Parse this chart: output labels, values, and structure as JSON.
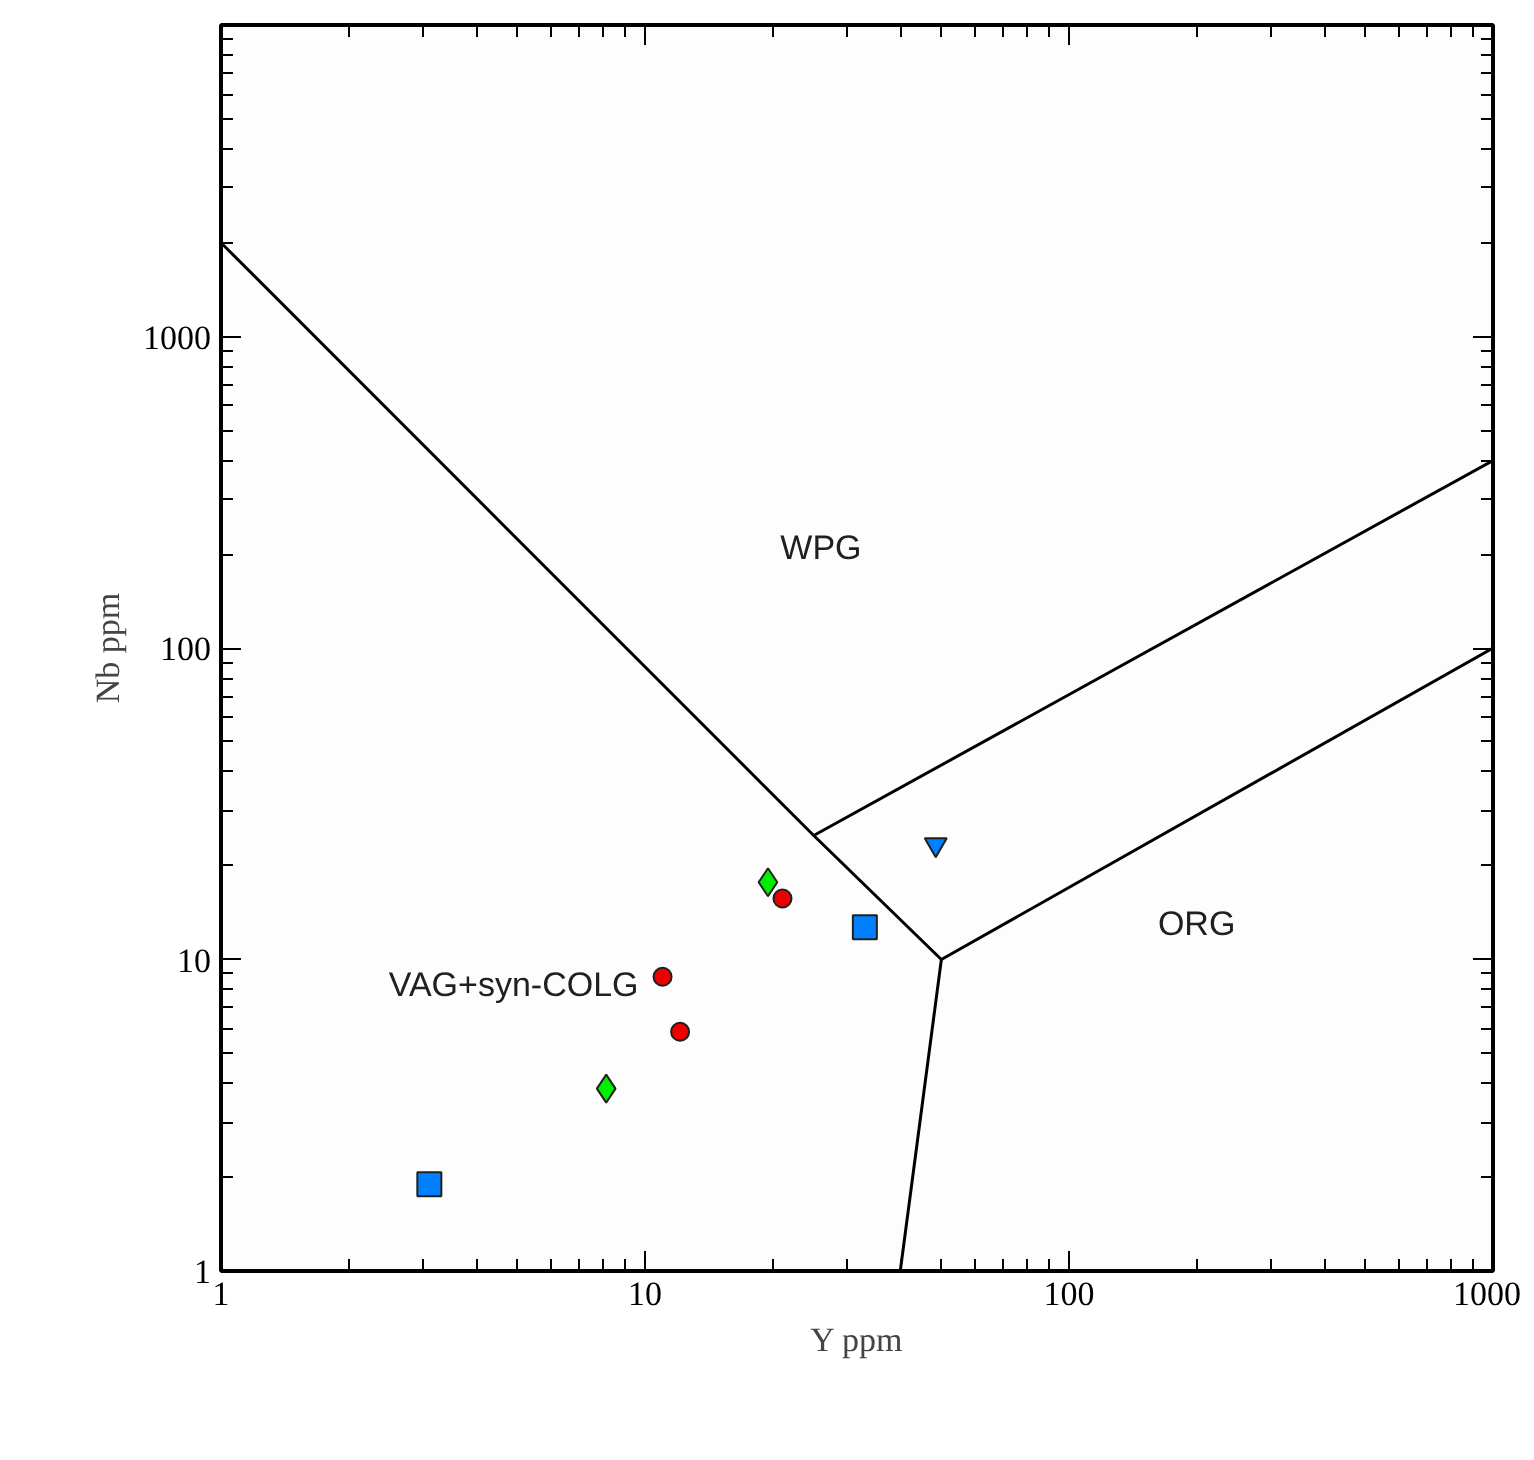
{
  "chart_data": {
    "type": "scatter",
    "xlabel": "Y ppm",
    "ylabel": "Nb ppm",
    "log": "xy",
    "xlim": [
      1,
      1000
    ],
    "ylim": [
      1,
      10000
    ],
    "xticks": [
      1,
      10,
      100,
      1000
    ],
    "yticks": [
      1,
      10,
      100,
      1000
    ],
    "grid": false,
    "series": [
      {
        "type": "line",
        "color": "#000000",
        "marker": "none",
        "line_style": "solid",
        "x": [
          1,
          25,
          50,
          40
        ],
        "values": [
          2000,
          25,
          10,
          1
        ]
      },
      {
        "type": "line",
        "color": "#000000",
        "marker": "none",
        "line_style": "solid",
        "x": [
          25,
          1000
        ],
        "values": [
          25,
          400
        ]
      },
      {
        "type": "line",
        "color": "#000000",
        "marker": "none",
        "line_style": "solid",
        "x": [
          50,
          1000
        ],
        "values": [
          10,
          100
        ]
      },
      {
        "color": "#0080ff",
        "marker": "square",
        "x": [
          3.1,
          33
        ],
        "values": [
          1.9,
          12.7
        ]
      },
      {
        "color": "#00ee00",
        "marker": "diamond",
        "x": [
          8.1,
          19.5
        ],
        "values": [
          3.85,
          17.7
        ]
      },
      {
        "color": "#ee0000",
        "marker": "circle",
        "x": [
          11,
          12.1,
          21.1
        ],
        "values": [
          8.8,
          5.86,
          15.7
        ]
      },
      {
        "color": "#0080ff",
        "marker": "triangle",
        "x": [
          48.5
        ],
        "values": [
          23.4
        ]
      }
    ],
    "annotations": [
      "WPG",
      "VAG+syn-COLG",
      "ORG"
    ]
  }
}
